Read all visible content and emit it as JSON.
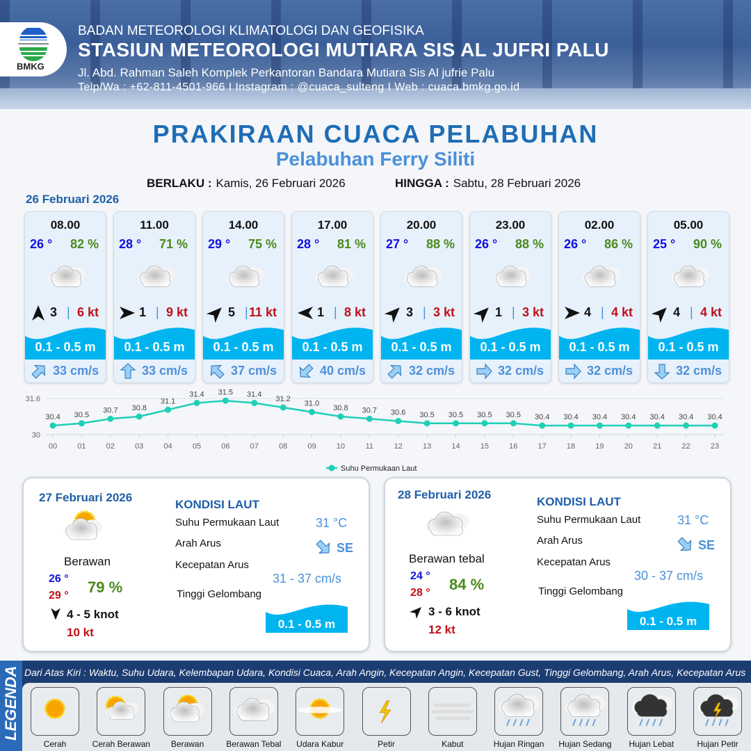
{
  "header": {
    "org": "BADAN METEOROLOGI KLIMATOLOGI DAN GEOFISIKA",
    "station": "STASIUN METEOROLOGI MUTIARA SIS AL JUFRI PALU",
    "address": "Jl. Abd. Rahman Saleh Komplek Perkantoran Bandara Mutiara Sis Al jufrie Palu",
    "contact": "Telp/Wa : +62-811-4501-966  I  Instagram : @cuaca_sulteng  I  Web : cuaca.bmkg.go.id",
    "logo_text": "BMKG"
  },
  "title": "PRAKIRAAN CUACA PELABUHAN",
  "subtitle": "Pelabuhan Ferry Siliti",
  "validity": {
    "from_label": "BERLAKU :",
    "from": "Kamis, 26 Februari 2026",
    "to_label": "HINGGA :",
    "to": "Sabtu, 28 Februari 2026"
  },
  "day1": {
    "date": "26 Februari 2026",
    "cards": [
      {
        "time": "08.00",
        "temp": "26 °",
        "rh": "82 %",
        "icon": "berawan-tebal",
        "wind_dir": "N",
        "wind": "3",
        "gust": "6 kt",
        "wave": "0.1 - 0.5 m",
        "current_dir": "NE",
        "current": "33 cm/s"
      },
      {
        "time": "11.00",
        "temp": "28 °",
        "rh": "71 %",
        "icon": "berawan-tebal",
        "wind_dir": "E",
        "wind": "1",
        "gust": "9 kt",
        "wave": "0.1 - 0.5 m",
        "current_dir": "N",
        "current": "33 cm/s"
      },
      {
        "time": "14.00",
        "temp": "29 °",
        "rh": "75 %",
        "icon": "berawan-tebal",
        "wind_dir": "NE",
        "wind": "5",
        "gust": "11 kt",
        "wave": "0.1 - 0.5 m",
        "current_dir": "NW",
        "current": "37 cm/s"
      },
      {
        "time": "17.00",
        "temp": "28 °",
        "rh": "81 %",
        "icon": "berawan-tebal",
        "wind_dir": "W",
        "wind": "1",
        "gust": "8 kt",
        "wave": "0.1 - 0.5 m",
        "current_dir": "SW",
        "current": "40 cm/s"
      },
      {
        "time": "20.00",
        "temp": "27 °",
        "rh": "88 %",
        "icon": "berawan-tebal",
        "wind_dir": "NE",
        "wind": "3",
        "gust": "3 kt",
        "wave": "0.1 - 0.5 m",
        "current_dir": "NE",
        "current": "32 cm/s"
      },
      {
        "time": "23.00",
        "temp": "26 °",
        "rh": "88 %",
        "icon": "berawan-tebal",
        "wind_dir": "NE",
        "wind": "1",
        "gust": "3 kt",
        "wave": "0.1 - 0.5 m",
        "current_dir": "E",
        "current": "32 cm/s"
      },
      {
        "time": "02.00",
        "temp": "26 °",
        "rh": "86 %",
        "icon": "berawan-tebal",
        "wind_dir": "E",
        "wind": "4",
        "gust": "4 kt",
        "wave": "0.1 - 0.5 m",
        "current_dir": "E",
        "current": "32 cm/s"
      },
      {
        "time": "05.00",
        "temp": "25 °",
        "rh": "90 %",
        "icon": "berawan-tebal",
        "wind_dir": "NE",
        "wind": "4",
        "gust": "4 kt",
        "wave": "0.1 - 0.5 m",
        "current_dir": "S",
        "current": "32 cm/s"
      }
    ]
  },
  "chart_data": {
    "type": "line",
    "title": "",
    "x": [
      "00",
      "01",
      "02",
      "03",
      "04",
      "05",
      "06",
      "07",
      "08",
      "09",
      "10",
      "11",
      "12",
      "13",
      "14",
      "15",
      "16",
      "17",
      "18",
      "19",
      "20",
      "21",
      "22",
      "23"
    ],
    "series": [
      {
        "name": "Suhu Permukaan Laut",
        "values": [
          30.4,
          30.5,
          30.7,
          30.8,
          31.1,
          31.4,
          31.5,
          31.4,
          31.2,
          31.0,
          30.8,
          30.7,
          30.6,
          30.5,
          30.5,
          30.5,
          30.5,
          30.4,
          30.4,
          30.4,
          30.4,
          30.4,
          30.4,
          30.4
        ],
        "color": "#1fcfb8"
      }
    ],
    "ylim": [
      30,
      31.6
    ],
    "yticks": [
      "30",
      "31.6"
    ],
    "grid": true,
    "legend": "bottom"
  },
  "panels": [
    {
      "date": "27 Februari 2026",
      "icon": "berawan",
      "condition": "Berawan",
      "tmin": "26 °",
      "tmax": "29 °",
      "rh": "79 %",
      "wind_dir": "S",
      "wind": "4 - 5 knot",
      "gust": "10 kt",
      "kondisi": "KONDISI LAUT",
      "sst_label": "Suhu Permukaan Laut",
      "sst": "31 °C",
      "arus_label": "Arah Arus",
      "arus": "SE",
      "kec_label": "Kecepatan Arus",
      "kec": "31 - 37 cm/s",
      "tg_label": "Tinggi Gelombang",
      "tg": "0.1 - 0.5 m"
    },
    {
      "date": "28 Februari 2026",
      "icon": "berawan-tebal",
      "condition": "Berawan tebal",
      "tmin": "24 °",
      "tmax": "28 °",
      "rh": "84 %",
      "wind_dir": "NE",
      "wind": "3 - 6 knot",
      "gust": "12 kt",
      "kondisi": "KONDISI LAUT",
      "sst_label": "Suhu Permukaan Laut",
      "sst": "31 °C",
      "arus_label": "Arah Arus",
      "arus": "SE",
      "kec_label": "Kecepatan Arus",
      "kec": "30 - 37 cm/s",
      "tg_label": "Tinggi Gelombang",
      "tg": "0.1 - 0.5 m"
    }
  ],
  "legend": {
    "label": "LEGENDA",
    "description": "Dari Atas Kiri : Waktu, Suhu Udara, Kelembapan Udara, Kondisi Cuaca, Arah Angin, Kecepatan Angin, Kecepatan Gust, Tinggi Gelombang, Arah Arus, Kecepatan Arus",
    "items": [
      {
        "label": "Cerah",
        "icon": "cerah"
      },
      {
        "label": "Cerah Berawan",
        "icon": "cerah-berawan"
      },
      {
        "label": "Berawan",
        "icon": "berawan"
      },
      {
        "label": "Berawan Tebal",
        "icon": "berawan-tebal"
      },
      {
        "label": "Udara Kabur",
        "icon": "udara-kabur"
      },
      {
        "label": "Petir",
        "icon": "petir"
      },
      {
        "label": "Kabut",
        "icon": "kabut"
      },
      {
        "label": "Hujan Ringan",
        "icon": "hujan-ringan"
      },
      {
        "label": "Hujan Sedang",
        "icon": "hujan-sedang"
      },
      {
        "label": "Hujan Lebat",
        "icon": "hujan-lebat"
      },
      {
        "label": "Hujan Petir",
        "icon": "hujan-petir"
      }
    ]
  },
  "colors": {
    "title": "#1f6db5",
    "wave": "#00b4f0",
    "temp": "#1010e0",
    "humidity": "#4a8a1c",
    "gust": "#c0101a",
    "current": "#4f8fd9",
    "legend_bg": "#1c3d72"
  }
}
